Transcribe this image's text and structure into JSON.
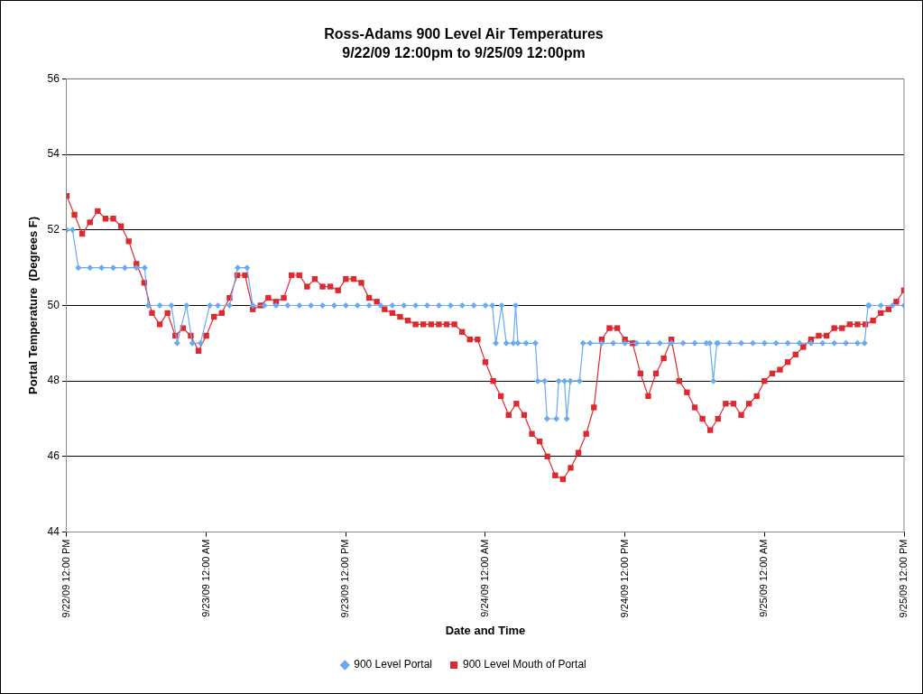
{
  "chart_data": {
    "type": "line",
    "title": "Ross-Adams 900 Level Air Temperatures",
    "subtitle": "9/22/09 12:00pm to 9/25/09 12:00pm",
    "xlabel": "Date and Time",
    "ylabel": "Portal Temperature  (Degrees F)",
    "xlim": [
      "--09-22T12:00",
      "--09-25T12:00"
    ],
    "xticks": [
      {
        "value": "--09-22T12:00",
        "label": "9/22/09 12:00 PM"
      },
      {
        "value": "--09-23T00:00",
        "label": "9/23/09 12:00 AM"
      },
      {
        "value": "--09-23T12:00",
        "label": "9/23/09 12:00 PM"
      },
      {
        "value": "--09-24T00:00",
        "label": "9/24/09 12:00 AM"
      },
      {
        "value": "--09-24T12:00",
        "label": "9/24/09 12:00 PM"
      },
      {
        "value": "--09-25T00:00",
        "label": "9/25/09 12:00 AM"
      },
      {
        "value": "--09-25T12:00",
        "label": "9/25/09 12:00 PM"
      }
    ],
    "ylim": [
      44,
      56
    ],
    "yticks": [
      44,
      46,
      48,
      50,
      52,
      54,
      56
    ],
    "grid": "y",
    "legend": "bottom",
    "line_style": "solid",
    "series": [
      {
        "name": "900 Level Portal",
        "color": "#6aaaf0",
        "marker": "diamond",
        "x": [
          "--09-22T12:00",
          "--09-22T12:30",
          "--09-22T13:00",
          "--09-22T14:00",
          "--09-22T15:00",
          "--09-22T16:00",
          "--09-22T17:00",
          "--09-22T18:00",
          "--09-22T18:42",
          "--09-22T19:00",
          "--09-22T20:00",
          "--09-22T21:00",
          "--09-22T21:30",
          "--09-22T22:18",
          "--09-22T22:48",
          "--09-22T23:30",
          "--09-23T00:18",
          "--09-23T01:00",
          "--09-23T02:00",
          "--09-23T02:42",
          "--09-23T03:30",
          "--09-23T04:00",
          "--09-23T05:00",
          "--09-23T06:00",
          "--09-23T07:00",
          "--09-23T08:00",
          "--09-23T09:00",
          "--09-23T10:00",
          "--09-23T11:00",
          "--09-23T12:00",
          "--09-23T13:00",
          "--09-23T14:00",
          "--09-23T15:00",
          "--09-23T16:00",
          "--09-23T17:00",
          "--09-23T18:00",
          "--09-23T19:00",
          "--09-23T20:00",
          "--09-23T21:00",
          "--09-23T22:00",
          "--09-23T23:00",
          "--09-24T00:00",
          "--09-24T00:36",
          "--09-24T00:54",
          "--09-24T01:24",
          "--09-24T01:48",
          "--09-24T02:24",
          "--09-24T02:36",
          "--09-24T02:48",
          "--09-24T03:30",
          "--09-24T04:18",
          "--09-24T04:30",
          "--09-24T05:06",
          "--09-24T05:18",
          "--09-24T06:06",
          "--09-24T06:18",
          "--09-24T06:48",
          "--09-24T07:00",
          "--09-24T07:18",
          "--09-24T08:06",
          "--09-24T08:24",
          "--09-24T09:00",
          "--09-24T10:00",
          "--09-24T11:00",
          "--09-24T12:00",
          "--09-24T13:00",
          "--09-24T14:00",
          "--09-24T15:00",
          "--09-24T16:00",
          "--09-24T17:00",
          "--09-24T18:00",
          "--09-24T19:00",
          "--09-24T19:18",
          "--09-24T19:36",
          "--09-24T19:54",
          "--09-24T20:00",
          "--09-24T21:00",
          "--09-24T22:00",
          "--09-24T23:00",
          "--09-25T00:00",
          "--09-25T01:00",
          "--09-25T02:00",
          "--09-25T03:00",
          "--09-25T04:00",
          "--09-25T05:00",
          "--09-25T06:00",
          "--09-25T07:00",
          "--09-25T08:00",
          "--09-25T08:36",
          "--09-25T08:54",
          "--09-25T09:00",
          "--09-25T10:00",
          "--09-25T11:00",
          "--09-25T12:00"
        ],
        "values": [
          52,
          52,
          51,
          51,
          51,
          51,
          51,
          51,
          51,
          50,
          50,
          50,
          49,
          50,
          49,
          49,
          50,
          50,
          50,
          51,
          51,
          50,
          50,
          50,
          50,
          50,
          50,
          50,
          50,
          50,
          50,
          50,
          50,
          50,
          50,
          50,
          50,
          50,
          50,
          50,
          50,
          50,
          50,
          49,
          50,
          49,
          49,
          50,
          49,
          49,
          49,
          48,
          48,
          47,
          47,
          48,
          48,
          47,
          48,
          48,
          49,
          49,
          49,
          49,
          49,
          49,
          49,
          49,
          49,
          49,
          49,
          49,
          49,
          48,
          49,
          49,
          49,
          49,
          49,
          49,
          49,
          49,
          49,
          49,
          49,
          49,
          49,
          49,
          49,
          50,
          50,
          50,
          50,
          50
        ]
      },
      {
        "name": "900 Level Mouth of Portal",
        "color": "#dd2a30",
        "marker": "square",
        "x": [
          "--09-22T12:00",
          "--09-22T12:40",
          "--09-22T13:20",
          "--09-22T14:00",
          "--09-22T14:40",
          "--09-22T15:20",
          "--09-22T16:00",
          "--09-22T16:40",
          "--09-22T17:20",
          "--09-22T18:00",
          "--09-22T18:40",
          "--09-22T19:20",
          "--09-22T20:00",
          "--09-22T20:40",
          "--09-22T21:20",
          "--09-22T22:00",
          "--09-22T22:40",
          "--09-22T23:20",
          "--09-23T00:00",
          "--09-23T00:40",
          "--09-23T01:20",
          "--09-23T02:00",
          "--09-23T02:40",
          "--09-23T03:20",
          "--09-23T04:00",
          "--09-23T04:40",
          "--09-23T05:20",
          "--09-23T06:00",
          "--09-23T06:40",
          "--09-23T07:20",
          "--09-23T08:00",
          "--09-23T08:40",
          "--09-23T09:20",
          "--09-23T10:00",
          "--09-23T10:40",
          "--09-23T11:20",
          "--09-23T12:00",
          "--09-23T12:40",
          "--09-23T13:20",
          "--09-23T14:00",
          "--09-23T14:40",
          "--09-23T15:20",
          "--09-23T16:00",
          "--09-23T16:40",
          "--09-23T17:20",
          "--09-23T18:00",
          "--09-23T18:40",
          "--09-23T19:20",
          "--09-23T20:00",
          "--09-23T20:40",
          "--09-23T21:20",
          "--09-23T22:00",
          "--09-23T22:40",
          "--09-23T23:20",
          "--09-24T00:00",
          "--09-24T00:40",
          "--09-24T01:20",
          "--09-24T02:00",
          "--09-24T02:40",
          "--09-24T03:20",
          "--09-24T04:00",
          "--09-24T04:40",
          "--09-24T05:20",
          "--09-24T06:00",
          "--09-24T06:40",
          "--09-24T07:20",
          "--09-24T08:00",
          "--09-24T08:40",
          "--09-24T09:20",
          "--09-24T10:00",
          "--09-24T10:40",
          "--09-24T11:20",
          "--09-24T12:00",
          "--09-24T12:40",
          "--09-24T13:20",
          "--09-24T14:00",
          "--09-24T14:40",
          "--09-24T15:20",
          "--09-24T16:00",
          "--09-24T16:40",
          "--09-24T17:20",
          "--09-24T18:00",
          "--09-24T18:40",
          "--09-24T19:20",
          "--09-24T20:00",
          "--09-24T20:40",
          "--09-24T21:20",
          "--09-24T22:00",
          "--09-24T22:40",
          "--09-24T23:20",
          "--09-25T00:00",
          "--09-25T00:40",
          "--09-25T01:20",
          "--09-25T02:00",
          "--09-25T02:40",
          "--09-25T03:20",
          "--09-25T04:00",
          "--09-25T04:40",
          "--09-25T05:20",
          "--09-25T06:00",
          "--09-25T06:40",
          "--09-25T07:20",
          "--09-25T08:00",
          "--09-25T08:40",
          "--09-25T09:20",
          "--09-25T10:00",
          "--09-25T10:40",
          "--09-25T11:20",
          "--09-25T12:00"
        ],
        "values": [
          52.9,
          52.4,
          51.9,
          52.2,
          52.5,
          52.3,
          52.3,
          52.1,
          51.7,
          51.1,
          50.6,
          49.8,
          49.5,
          49.8,
          49.2,
          49.4,
          49.2,
          48.8,
          49.2,
          49.7,
          49.8,
          50.2,
          50.8,
          50.8,
          49.9,
          50.0,
          50.2,
          50.1,
          50.2,
          50.8,
          50.8,
          50.5,
          50.7,
          50.5,
          50.5,
          50.4,
          50.7,
          50.7,
          50.6,
          50.2,
          50.1,
          49.9,
          49.8,
          49.7,
          49.6,
          49.5,
          49.5,
          49.5,
          49.5,
          49.5,
          49.5,
          49.3,
          49.1,
          49.1,
          48.5,
          48.0,
          47.6,
          47.1,
          47.4,
          47.1,
          46.6,
          46.4,
          46.0,
          45.5,
          45.4,
          45.7,
          46.1,
          46.6,
          47.3,
          49.1,
          49.4,
          49.4,
          49.1,
          49.0,
          48.2,
          47.6,
          48.2,
          48.6,
          49.1,
          48.0,
          47.7,
          47.3,
          47.0,
          46.7,
          47.0,
          47.4,
          47.4,
          47.1,
          47.4,
          47.6,
          48.0,
          48.2,
          48.3,
          48.5,
          48.7,
          48.9,
          49.1,
          49.2,
          49.2,
          49.4,
          49.4,
          49.5,
          49.5,
          49.5,
          49.6,
          49.8,
          49.9,
          50.1,
          50.4
        ]
      }
    ]
  }
}
